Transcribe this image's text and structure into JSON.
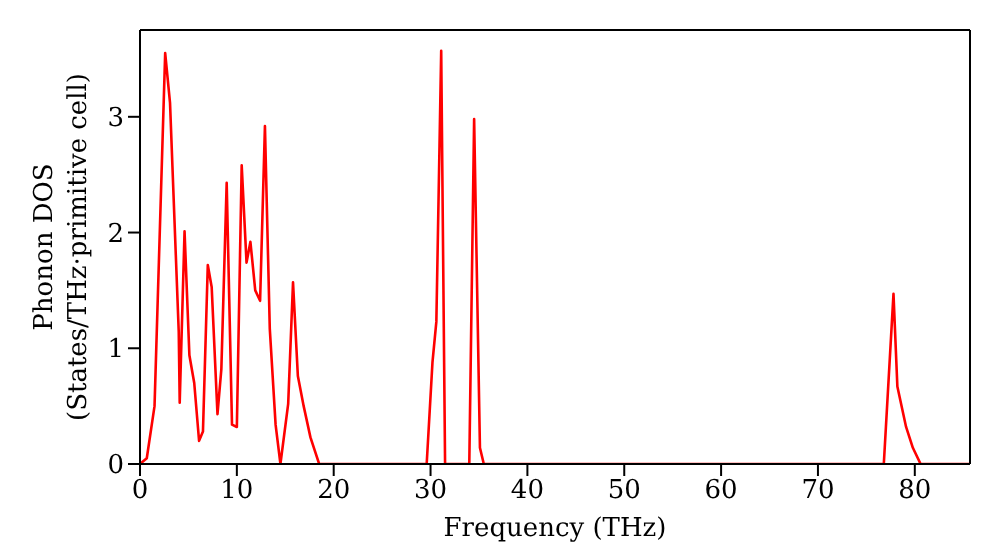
{
  "chart_data": {
    "type": "line",
    "xlabel": "Frequency (THz)",
    "ylabel": "Phonon DOS\n(States/THz·primitive cell)",
    "x": [
      0,
      0.7,
      1.5,
      2.6,
      3.1,
      4.0,
      4.1,
      4.6,
      5.1,
      5.6,
      6.1,
      6.5,
      7.0,
      7.4,
      8.0,
      8.4,
      8.95,
      9.5,
      10.0,
      10.5,
      11.0,
      11.4,
      11.9,
      12.4,
      12.9,
      13.4,
      14.0,
      14.5,
      15.3,
      15.8,
      16.3,
      16.9,
      17.6,
      18.5,
      29.6,
      30.2,
      30.6,
      31.1,
      31.5,
      34.0,
      34.5,
      35.1,
      35.5,
      76.8,
      77.8,
      78.2,
      79.1,
      79.8,
      80.6,
      85.7
    ],
    "series": [
      {
        "color": "#ff0000",
        "values": [
          0,
          0.05,
          0.5,
          3.55,
          3.12,
          1.14,
          0.53,
          2.01,
          0.94,
          0.7,
          0.2,
          0.28,
          1.72,
          1.53,
          0.43,
          0.82,
          2.43,
          0.34,
          0.32,
          2.58,
          1.74,
          1.92,
          1.5,
          1.41,
          2.92,
          1.17,
          0.34,
          0,
          0.52,
          1.57,
          0.76,
          0.5,
          0.23,
          0,
          0,
          0.88,
          1.23,
          3.57,
          0,
          0,
          2.98,
          0.14,
          0,
          0,
          1.47,
          0.67,
          0.32,
          0.14,
          0,
          0
        ]
      }
    ],
    "xlim": [
      0,
      85.7
    ],
    "xticks": [
      0,
      10,
      20,
      30,
      40,
      50,
      60,
      70,
      80
    ],
    "ylim": [
      0,
      3.75
    ],
    "yticks": [
      0,
      1,
      2,
      3
    ],
    "grid": false,
    "legend": false,
    "marker": "none",
    "line_style": "solid"
  }
}
